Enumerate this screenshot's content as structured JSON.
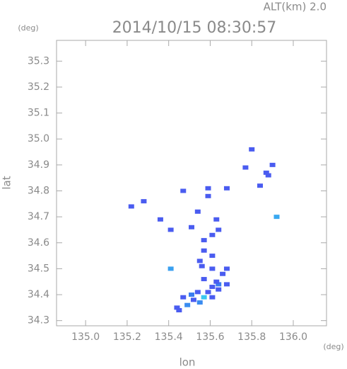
{
  "chart_data": {
    "type": "scatter",
    "title": "2014/10/15 08:30:57",
    "subtitle": "ALT(km) 2.0",
    "x_label": "lon",
    "y_label": "lat",
    "x_unit": "(deg)",
    "y_unit": "(deg)",
    "xlim": [
      134.86,
      136.16
    ],
    "ylim": [
      34.28,
      35.38
    ],
    "xticks": [
      {
        "value": 135,
        "label": "135.0"
      },
      135.2,
      135.4,
      135.6,
      135.8,
      {
        "value": 136,
        "label": "136.0"
      }
    ],
    "yticks": [
      34.3,
      34.4,
      34.5,
      34.6,
      34.7,
      34.8,
      34.9,
      {
        "value": 35,
        "label": "35.0"
      },
      35.1,
      35.2,
      35.3
    ],
    "x": [
      135.22,
      135.28,
      135.36,
      135.41,
      135.47,
      135.41,
      135.59,
      135.59,
      135.68,
      135.8,
      135.77,
      135.87,
      135.88,
      135.9,
      135.84,
      135.92,
      135.63,
      135.64,
      135.51,
      135.54,
      135.57,
      135.61,
      135.57,
      135.61,
      135.56,
      135.61,
      135.66,
      135.68,
      135.57,
      135.64,
      135.68,
      135.61,
      135.54,
      135.51,
      135.47,
      135.44,
      135.45,
      135.49,
      135.57,
      135.61,
      135.64,
      135.52,
      135.55,
      135.59,
      135.63,
      135.55
    ],
    "values": [
      34.74,
      34.76,
      34.69,
      34.65,
      34.8,
      34.5,
      34.81,
      34.78,
      34.81,
      34.96,
      34.89,
      34.87,
      34.86,
      34.9,
      34.82,
      34.7,
      34.69,
      34.65,
      34.66,
      34.72,
      34.61,
      34.63,
      34.57,
      34.55,
      34.51,
      34.5,
      34.48,
      34.5,
      34.46,
      34.44,
      34.44,
      34.43,
      34.41,
      34.4,
      34.39,
      34.35,
      34.34,
      34.36,
      34.39,
      34.39,
      34.42,
      34.38,
      34.37,
      34.41,
      34.45,
      34.53
    ],
    "colors": [
      "#4a5cf0",
      "#4a5cf0",
      "#4a5cf0",
      "#4a5cf0",
      "#4a5cf0",
      "#3aa0f0",
      "#4a5cf0",
      "#4a5cf0",
      "#4a5cf0",
      "#4a5cf0",
      "#4a5cf0",
      "#4a5cf0",
      "#4a5cf0",
      "#4a5cf0",
      "#4a5cf0",
      "#3aa8f0",
      "#4a5cf0",
      "#4a5cf0",
      "#4a5cf0",
      "#4a5cf0",
      "#4a5cf0",
      "#4a5cf0",
      "#4a5cf0",
      "#4a5cf0",
      "#4a5cf0",
      "#4a5cf0",
      "#4a5cf0",
      "#4a5cf0",
      "#4a5cf0",
      "#3a7cf0",
      "#4a5cf0",
      "#4a5cf0",
      "#4a5cf0",
      "#3a7cf0",
      "#4a5cf0",
      "#4a5cf0",
      "#4a5cf0",
      "#3a8cf0",
      "#3ac8f0",
      "#4a5cf0",
      "#4a5cf0",
      "#4a5cf0",
      "#3a8cf0",
      "#4a5cf0",
      "#4a5cf0",
      "#4a5cf0"
    ]
  }
}
